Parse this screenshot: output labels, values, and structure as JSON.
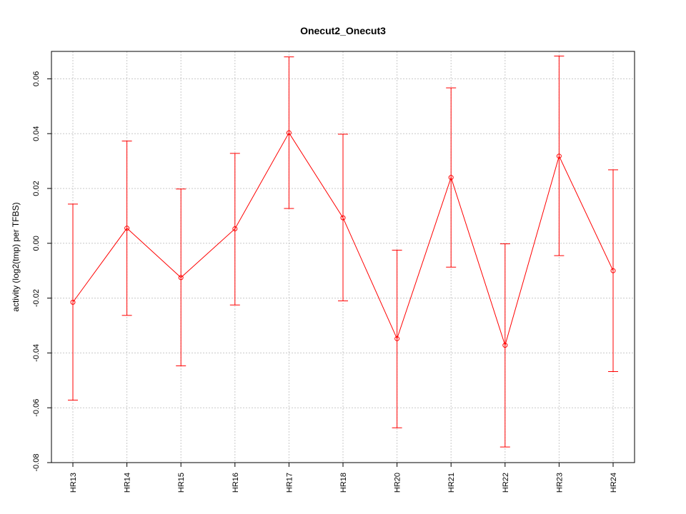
{
  "chart_data": {
    "type": "line",
    "title": "Onecut2_Onecut3",
    "xlabel": "",
    "ylabel": "activity (log2(tmp) per TFBS)",
    "categories": [
      "HR13",
      "HR14",
      "HR15",
      "HR16",
      "HR17",
      "HR18",
      "HR20",
      "HR21",
      "HR22",
      "HR23",
      "HR24"
    ],
    "series": [
      {
        "values": [
          -0.0215,
          0.0055,
          -0.0125,
          0.0053,
          0.0403,
          0.0093,
          -0.0348,
          0.024,
          -0.0372,
          0.0318,
          -0.01
        ],
        "lower": [
          -0.0572,
          -0.0263,
          -0.0447,
          -0.0225,
          0.0127,
          -0.021,
          -0.0673,
          -0.0087,
          -0.0743,
          -0.0045,
          -0.0468
        ],
        "upper": [
          0.0143,
          0.0373,
          0.0198,
          0.0328,
          0.068,
          0.0398,
          -0.0025,
          0.0567,
          -0.0002,
          0.0683,
          0.0268
        ]
      }
    ],
    "ylim": [
      -0.08,
      0.07
    ],
    "yticks": [
      -0.08,
      -0.06,
      -0.04,
      -0.02,
      0.0,
      0.02,
      0.04,
      0.06
    ],
    "ytick_labels": [
      "-0.08",
      "-0.06",
      "-0.04",
      "-0.02",
      "0.00",
      "0.02",
      "0.04",
      "0.06"
    ],
    "grid": true,
    "color": "#ff0000"
  }
}
